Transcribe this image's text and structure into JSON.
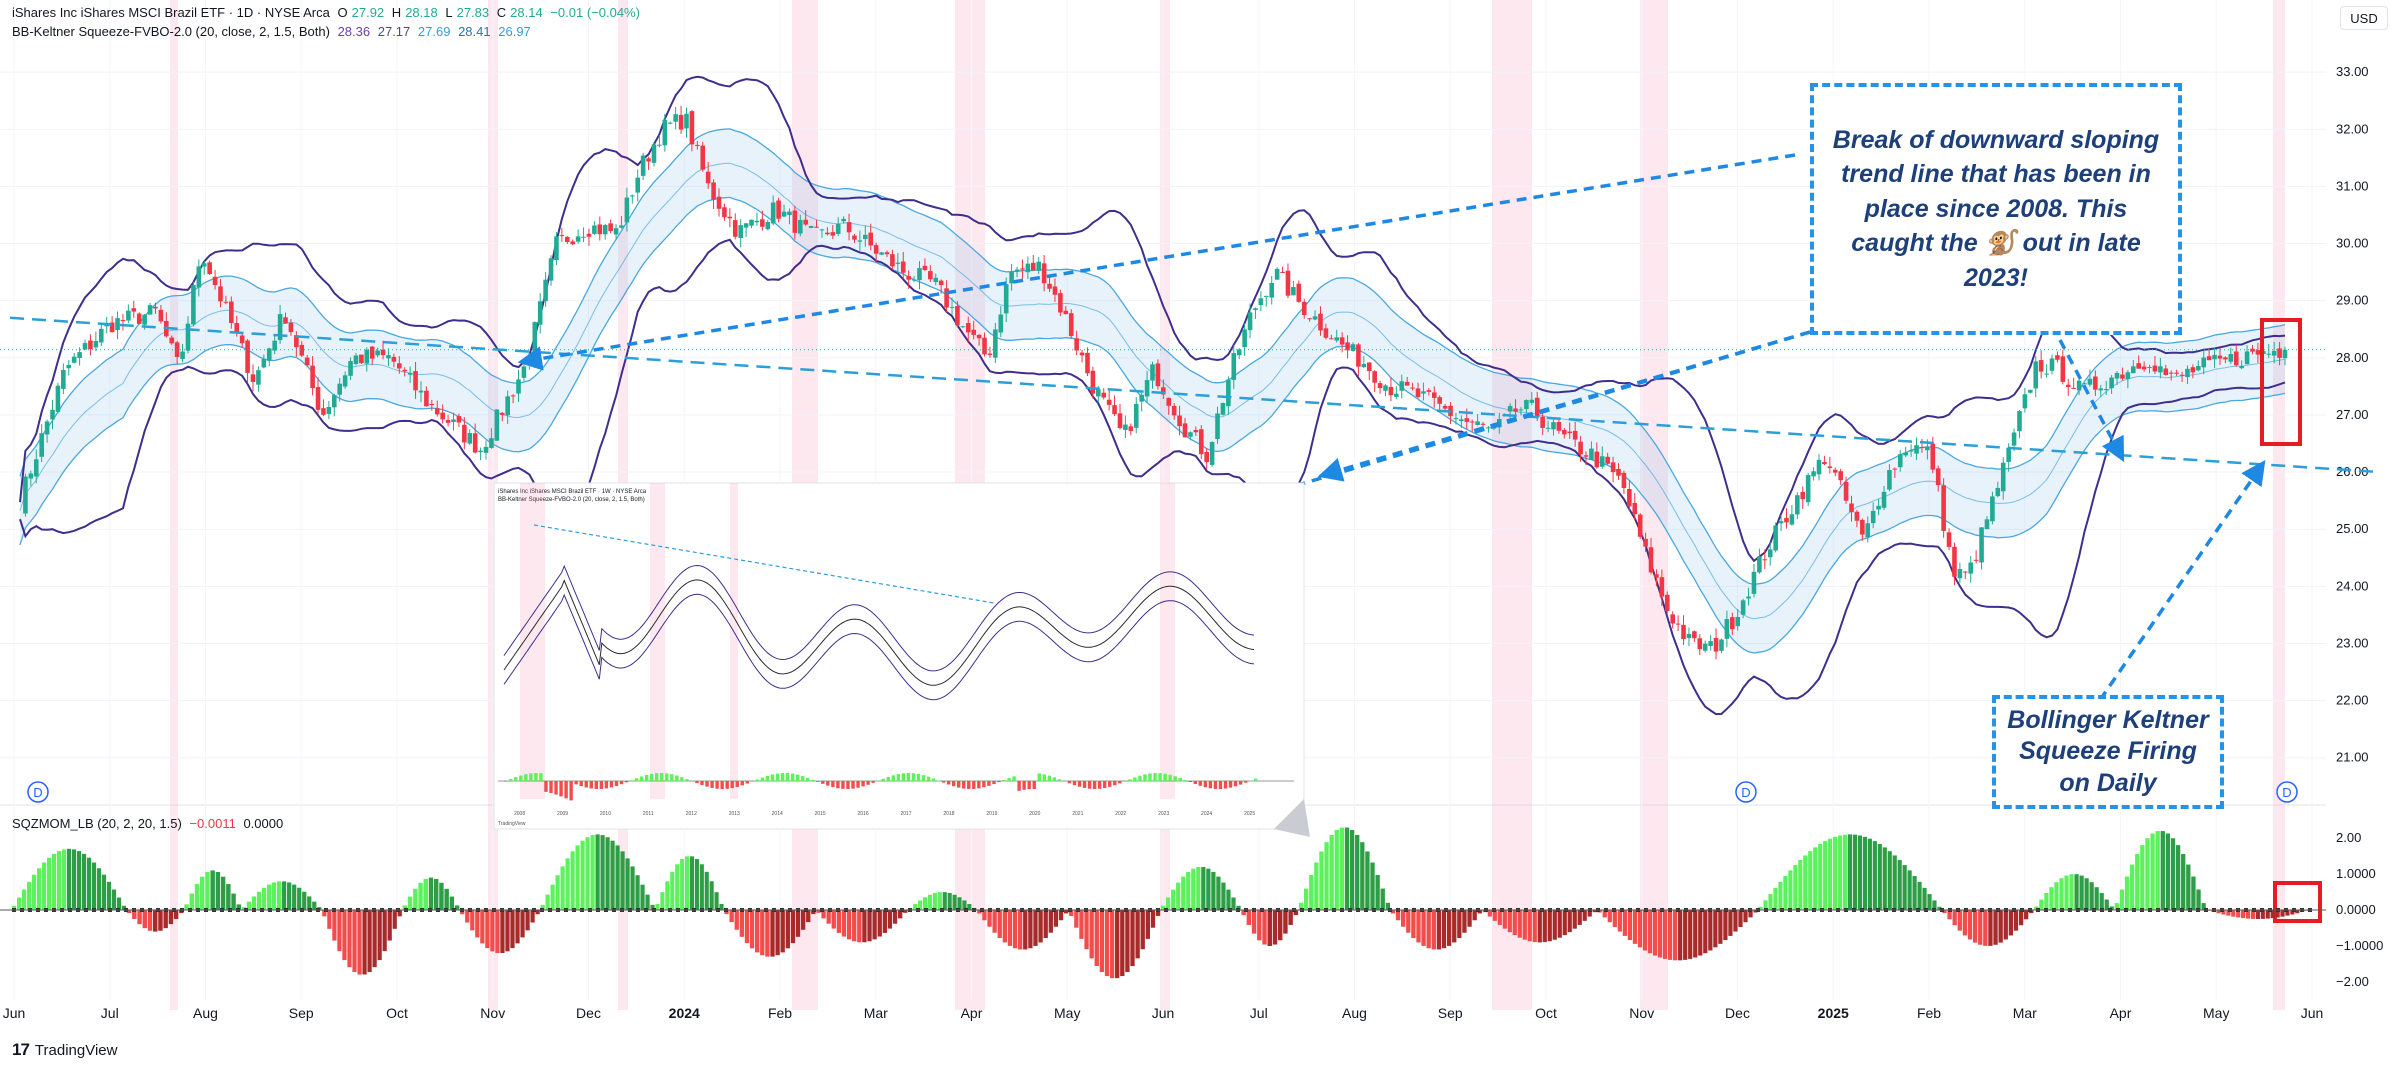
{
  "header": {
    "symbol": "iShares Inc iShares MSCI Brazil ETF · 1D · NYSE Arca",
    "o_label": "O",
    "o_value": "27.92",
    "h_label": "H",
    "h_value": "28.18",
    "l_label": "L",
    "l_value": "27.83",
    "c_label": "C",
    "c_value": "28.14",
    "change": "−0.01 (−0.04%)",
    "indicator_title": "BB-Keltner Squeeze-FVBO-2.0 (20, close, 2, 1.5, Both)",
    "indicator_values": [
      "28.36",
      "27.17",
      "27.69",
      "28.41",
      "26.97"
    ],
    "indicator_colors": [
      "#6a3fb0",
      "#4a4a8a",
      "#3a9bd8",
      "#2f6fb8",
      "#3a9bd8"
    ]
  },
  "currency_button": "USD",
  "momentum_header": {
    "title": "SQZMOM_LB (20, 2, 20, 1.5)",
    "v1": "−0.0011",
    "v2": "0.0000"
  },
  "callouts": {
    "trendline": "Break of downward sloping trend line that has been in place since 2008. This caught the 🐒 out in late 2023!",
    "squeeze": "Bollinger Keltner Squeeze Firing on Daily"
  },
  "dividend_marker": "D",
  "brand": {
    "logo": "17",
    "name": "TradingView"
  },
  "colors": {
    "up": "#22ab94",
    "down": "#f23645",
    "bb": "#3f2e8c",
    "kc": "#4aa8e0",
    "fill": "rgba(120,185,235,0.18)",
    "squeeze_band": "rgba(245,150,180,0.22)",
    "trendline": "#2a9fd8",
    "arrow": "#1e88e5",
    "highlight": "#e51c23",
    "mom_lime": "#5ef15e",
    "mom_green": "#2e9e46",
    "mom_red": "#f24c4c",
    "mom_maroon": "#a82a2a"
  },
  "chart_data": [
    {
      "type": "candlestick",
      "title": "iShares MSCI Brazil ETF (EWZ) daily",
      "x_ticks": [
        "Jun",
        "Jul",
        "Aug",
        "Sep",
        "Oct",
        "Nov",
        "Dec",
        "2024",
        "Feb",
        "Mar",
        "Apr",
        "May",
        "Jun",
        "Jul",
        "Aug",
        "Sep",
        "Oct",
        "Nov",
        "Dec",
        "2025",
        "Feb",
        "Mar",
        "Apr",
        "May",
        "Jun"
      ],
      "y_ticks": [
        "21.00",
        "22.00",
        "23.00",
        "24.00",
        "25.00",
        "26.00",
        "27.00",
        "28.00",
        "29.00",
        "30.00",
        "31.00",
        "32.00",
        "33.00"
      ],
      "ylim": [
        20.4,
        33.3
      ],
      "last_price": 28.14,
      "price_path_knots": [
        {
          "x": 0,
          "y": 25.5
        },
        {
          "x": 0.03,
          "y": 27.8
        },
        {
          "x": 0.06,
          "y": 28.6
        },
        {
          "x": 0.09,
          "y": 28.8
        },
        {
          "x": 0.105,
          "y": 27.8
        },
        {
          "x": 0.12,
          "y": 29.9
        },
        {
          "x": 0.135,
          "y": 28.9
        },
        {
          "x": 0.155,
          "y": 27.6
        },
        {
          "x": 0.175,
          "y": 28.8
        },
        {
          "x": 0.2,
          "y": 27.0
        },
        {
          "x": 0.22,
          "y": 28.0
        },
        {
          "x": 0.245,
          "y": 28.0
        },
        {
          "x": 0.27,
          "y": 27.2
        },
        {
          "x": 0.305,
          "y": 26.4
        },
        {
          "x": 0.335,
          "y": 27.9
        },
        {
          "x": 0.355,
          "y": 30.0
        },
        {
          "x": 0.375,
          "y": 30.3
        },
        {
          "x": 0.395,
          "y": 30.2
        },
        {
          "x": 0.41,
          "y": 31.3
        },
        {
          "x": 0.425,
          "y": 32.0
        },
        {
          "x": 0.44,
          "y": 32.2
        },
        {
          "x": 0.455,
          "y": 31.0
        },
        {
          "x": 0.475,
          "y": 30.2
        },
        {
          "x": 0.5,
          "y": 30.6
        },
        {
          "x": 0.525,
          "y": 30.1
        },
        {
          "x": 0.545,
          "y": 30.3
        },
        {
          "x": 0.565,
          "y": 29.9
        },
        {
          "x": 0.585,
          "y": 29.5
        },
        {
          "x": 0.605,
          "y": 29.3
        },
        {
          "x": 0.625,
          "y": 28.5
        },
        {
          "x": 0.64,
          "y": 28.0
        },
        {
          "x": 0.655,
          "y": 29.5
        },
        {
          "x": 0.675,
          "y": 29.6
        },
        {
          "x": 0.69,
          "y": 28.8
        },
        {
          "x": 0.71,
          "y": 27.5
        },
        {
          "x": 0.73,
          "y": 26.6
        },
        {
          "x": 0.75,
          "y": 27.8
        },
        {
          "x": 0.77,
          "y": 26.8
        },
        {
          "x": 0.785,
          "y": 26.3
        },
        {
          "x": 0.8,
          "y": 27.7
        },
        {
          "x": 0.815,
          "y": 28.8
        },
        {
          "x": 0.83,
          "y": 29.5
        },
        {
          "x": 0.845,
          "y": 29.0
        },
        {
          "x": 0.86,
          "y": 28.6
        },
        {
          "x": 0.875,
          "y": 28.2
        },
        {
          "x": 0.89,
          "y": 27.9
        },
        {
          "x": 0.905,
          "y": 27.5
        },
        {
          "x": 0.92,
          "y": 27.4
        },
        {
          "x": 0.935,
          "y": 27.2
        },
        {
          "x": 0.955,
          "y": 26.9
        },
        {
          "x": 0.975,
          "y": 26.7
        },
        {
          "x": 0.99,
          "y": 27.1
        }
      ],
      "price_path_knots_segment_b": [
        {
          "x": 0,
          "y": 27.1
        },
        {
          "x": 0.04,
          "y": 26.6
        },
        {
          "x": 0.08,
          "y": 26.3
        },
        {
          "x": 0.12,
          "y": 25.8
        },
        {
          "x": 0.15,
          "y": 24.6
        },
        {
          "x": 0.18,
          "y": 23.6
        },
        {
          "x": 0.21,
          "y": 23.0
        },
        {
          "x": 0.24,
          "y": 22.9
        },
        {
          "x": 0.27,
          "y": 23.5
        },
        {
          "x": 0.31,
          "y": 24.6
        },
        {
          "x": 0.35,
          "y": 25.5
        },
        {
          "x": 0.39,
          "y": 26.3
        },
        {
          "x": 0.42,
          "y": 25.4
        },
        {
          "x": 0.44,
          "y": 24.8
        },
        {
          "x": 0.47,
          "y": 25.9
        },
        {
          "x": 0.5,
          "y": 26.5
        },
        {
          "x": 0.53,
          "y": 26.3
        },
        {
          "x": 0.56,
          "y": 24.2
        },
        {
          "x": 0.58,
          "y": 24.2
        },
        {
          "x": 0.61,
          "y": 25.4
        },
        {
          "x": 0.64,
          "y": 26.6
        },
        {
          "x": 0.67,
          "y": 27.9
        },
        {
          "x": 0.7,
          "y": 27.8
        },
        {
          "x": 0.73,
          "y": 27.4
        },
        {
          "x": 0.76,
          "y": 27.6
        },
        {
          "x": 0.79,
          "y": 27.8
        },
        {
          "x": 0.82,
          "y": 28.0
        },
        {
          "x": 0.85,
          "y": 27.6
        },
        {
          "x": 0.88,
          "y": 27.8
        },
        {
          "x": 0.91,
          "y": 27.9
        },
        {
          "x": 0.94,
          "y": 28.0
        },
        {
          "x": 0.97,
          "y": 28.1
        },
        {
          "x": 1.0,
          "y": 28.14
        }
      ],
      "trendline_start": {
        "date_index": 0,
        "price": 28.7
      },
      "trendline_end": {
        "date_index": 1,
        "price": 26.0
      },
      "squeeze_periods_approx": [
        {
          "month": "Jul",
          "narrow": true
        },
        {
          "month": "Nov",
          "narrow": true
        },
        {
          "month": "Dec",
          "narrow": true
        },
        {
          "month": "Feb",
          "wide": true
        },
        {
          "month": "Apr",
          "wide": true
        },
        {
          "month": "Jun",
          "narrow": true
        },
        {
          "month": "Oct",
          "wide": true
        },
        {
          "month": "Nov",
          "wide": true
        },
        {
          "month": "Jun",
          "narrow": true
        }
      ]
    },
    {
      "type": "bar",
      "title": "SQZMOM_LB (20, 2, 20, 1.5)",
      "y_ticks": [
        "2.00",
        "1.0000",
        "0.0000",
        "−1.0000",
        "−2.00"
      ],
      "ylim": [
        -2.5,
        2.5
      ],
      "waves": [
        {
          "x0": 0.0,
          "x1": 0.05,
          "peak": 1.7
        },
        {
          "x0": 0.05,
          "x1": 0.075,
          "peak": -0.6
        },
        {
          "x0": 0.075,
          "x1": 0.1,
          "peak": 1.1
        },
        {
          "x0": 0.1,
          "x1": 0.135,
          "peak": 0.8
        },
        {
          "x0": 0.135,
          "x1": 0.17,
          "peak": -1.8
        },
        {
          "x0": 0.17,
          "x1": 0.195,
          "peak": 0.9
        },
        {
          "x0": 0.195,
          "x1": 0.23,
          "peak": -1.2
        },
        {
          "x0": 0.23,
          "x1": 0.28,
          "peak": 2.1
        },
        {
          "x0": 0.28,
          "x1": 0.31,
          "peak": 1.5
        },
        {
          "x0": 0.31,
          "x1": 0.35,
          "peak": -1.3
        },
        {
          "x0": 0.35,
          "x1": 0.39,
          "peak": -0.9
        },
        {
          "x0": 0.39,
          "x1": 0.42,
          "peak": 0.5
        },
        {
          "x0": 0.42,
          "x1": 0.46,
          "peak": -1.1
        },
        {
          "x0": 0.46,
          "x1": 0.5,
          "peak": -1.9
        },
        {
          "x0": 0.5,
          "x1": 0.535,
          "peak": 1.2
        },
        {
          "x0": 0.535,
          "x1": 0.56,
          "peak": -1.0
        },
        {
          "x0": 0.56,
          "x1": 0.6,
          "peak": 2.3
        },
        {
          "x0": 0.6,
          "x1": 0.64,
          "peak": -1.1
        },
        {
          "x0": 0.64,
          "x1": 0.69,
          "peak": -0.9
        },
        {
          "x0": 0.69,
          "x1": 0.76,
          "peak": -1.4
        },
        {
          "x0": 0.76,
          "x1": 0.84,
          "peak": 2.1
        },
        {
          "x0": 0.84,
          "x1": 0.88,
          "peak": -1.0
        },
        {
          "x0": 0.88,
          "x1": 0.915,
          "peak": 1.0
        },
        {
          "x0": 0.915,
          "x1": 0.955,
          "peak": 2.2
        },
        {
          "x0": 0.955,
          "x1": 1.0,
          "peak": -0.25
        }
      ]
    }
  ],
  "inset": {
    "header_lines": [
      "iShares Inc iShares MSCI Brazil ETF · 1W · NYSE Arca",
      "BB-Keltner Squeeze-FVBO-2.0 (20, close, 2, 1.5, Both)"
    ],
    "x_ticks": [
      "2008",
      "2009",
      "2010",
      "2011",
      "2012",
      "2013",
      "2014",
      "2015",
      "2016",
      "2017",
      "2018",
      "2019",
      "2020",
      "2021",
      "2022",
      "2023",
      "2024",
      "2025"
    ],
    "brand": "TradingView"
  }
}
